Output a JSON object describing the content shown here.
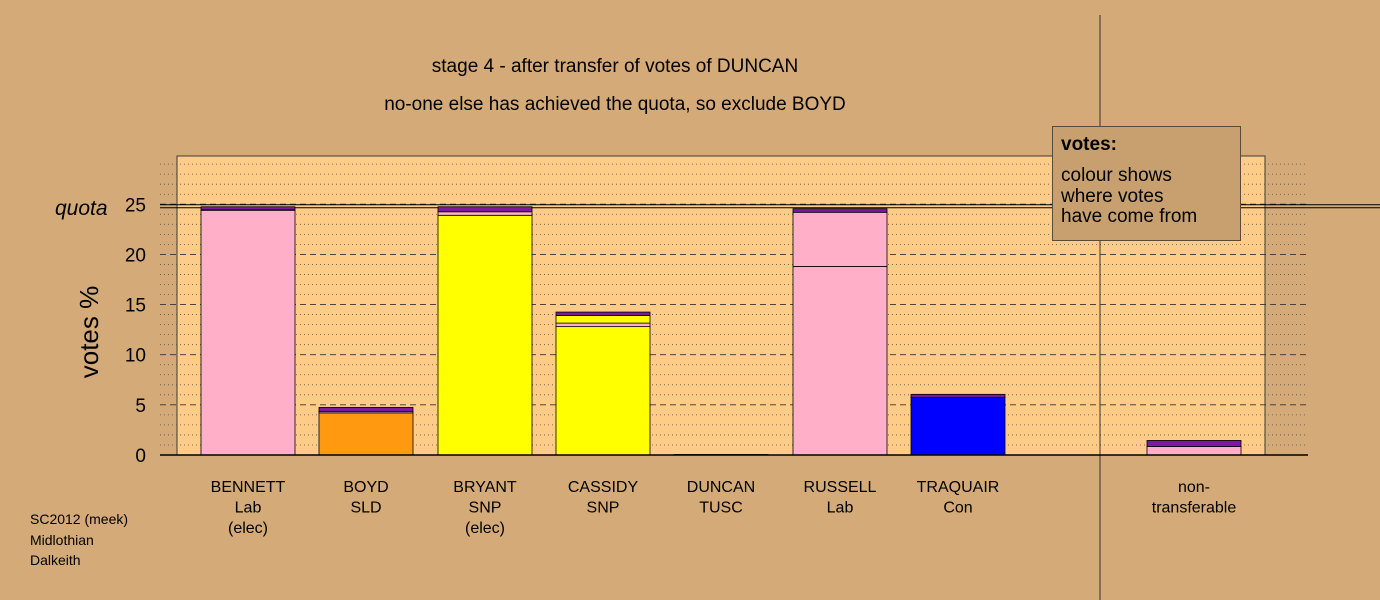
{
  "title": "stage 4 - after transfer of votes of DUNCAN",
  "subtitle": "no-one else has achieved the quota, so exclude BOYD",
  "legend": {
    "title": "votes:",
    "lines": [
      "colour shows",
      "where votes",
      "have come from"
    ]
  },
  "footer": [
    "SC2012 (meek)",
    "Midlothian",
    "Dalkeith"
  ],
  "colors": {
    "background": "#d4aa78",
    "plot_area": "#ffcc88",
    "Lab": "#ffb0c8",
    "SLD": "#ff9910",
    "SNP": "#ffff00",
    "Con": "#0000ff",
    "TUSC": "#000000",
    "transfer_cap": "#7d1aa0"
  },
  "chart_data": {
    "type": "bar",
    "stacked": true,
    "ylabel": "votes %",
    "ylim": [
      0,
      25
    ],
    "yticks": [
      0,
      5,
      10,
      15,
      20,
      25
    ],
    "quota_label": "quota",
    "quota": 24.8,
    "grid": "dashed at major ticks, dotted at minor ticks",
    "legend_position": "top-right",
    "candidates": [
      {
        "name": "BENNETT",
        "party": "Lab",
        "note": "(elec)",
        "segments": [
          {
            "from": "Lab",
            "value": 24.4
          },
          {
            "from": "Con",
            "value": 0.05
          },
          {
            "from": "transfer",
            "value": 0.3
          }
        ]
      },
      {
        "name": "BOYD",
        "party": "SLD",
        "note": "",
        "segments": [
          {
            "from": "SLD",
            "value": 4.2
          },
          {
            "from": "Lab",
            "value": 0.15
          },
          {
            "from": "transfer",
            "value": 0.4
          }
        ]
      },
      {
        "name": "BRYANT",
        "party": "SNP",
        "note": "(elec)",
        "segments": [
          {
            "from": "SNP",
            "value": 23.9
          },
          {
            "from": "Lab",
            "value": 0.35
          },
          {
            "from": "transfer",
            "value": 0.5
          }
        ]
      },
      {
        "name": "CASSIDY",
        "party": "SNP",
        "note": "",
        "segments": [
          {
            "from": "SNP",
            "value": 12.8
          },
          {
            "from": "Lab",
            "value": 0.35
          },
          {
            "from": "SNP",
            "value": 0.75
          },
          {
            "from": "transfer",
            "value": 0.35
          }
        ]
      },
      {
        "name": "DUNCAN",
        "party": "TUSC",
        "note": "",
        "segments": [
          {
            "from": "TUSC",
            "value": 0.05
          }
        ]
      },
      {
        "name": "RUSSELL",
        "party": "Lab",
        "note": "",
        "segments": [
          {
            "from": "Lab",
            "value": 18.8
          },
          {
            "from": "Lab",
            "value": 5.4
          },
          {
            "from": "transfer",
            "value": 0.35
          }
        ]
      },
      {
        "name": "TRAQUAIR",
        "party": "Con",
        "note": "",
        "segments": [
          {
            "from": "Con",
            "value": 5.75
          },
          {
            "from": "transfer",
            "value": 0.3
          }
        ]
      },
      {
        "name": "non-transferable",
        "party": "",
        "note": "",
        "label_lines": [
          "non-",
          "transferable"
        ],
        "segments": [
          {
            "from": "Lab",
            "value": 0.85
          },
          {
            "from": "transfer",
            "value": 0.6
          }
        ]
      }
    ]
  }
}
